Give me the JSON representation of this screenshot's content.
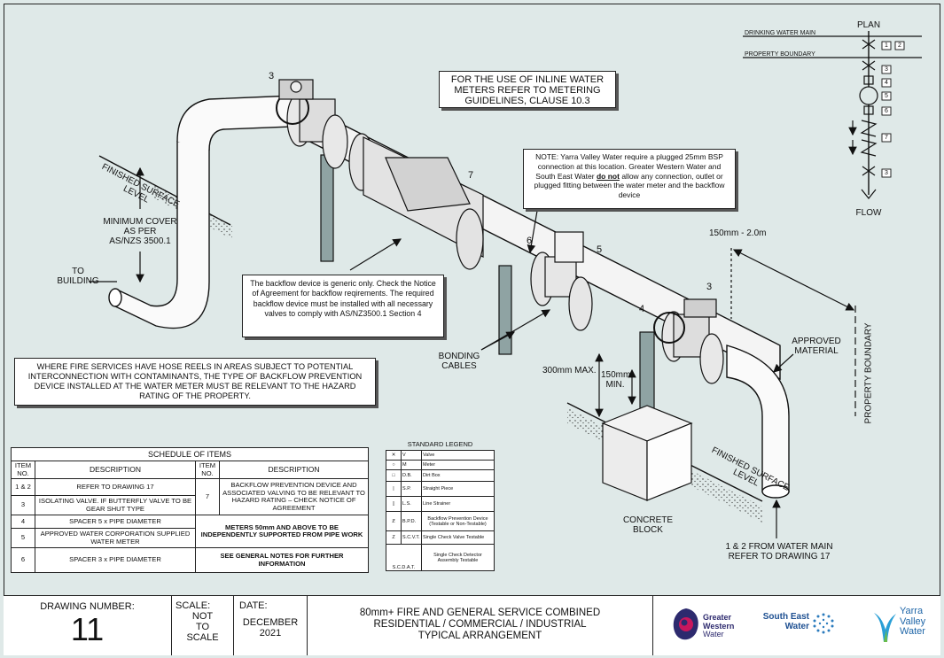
{
  "notes": {
    "meters": "FOR THE USE OF INLINE WATER METERS REFER TO METERING GUIDELINES, CLAUSE 10.3",
    "yarra_note_1": "NOTE: Yarra Valley Water require a plugged 25mm BSP connection at this location. Greater Western Water and South East Water",
    "yarra_note_emph": "do not",
    "yarra_note_2": "allow any connection, outlet or plugged fitting between the water meter and the backflow device",
    "backflow": "The backflow device is generic only. Check the Notice of Agreement for backflow reqirements. The required backflow device must be installed with all necessary valves to comply with AS/NZ3500.1 Section 4",
    "fire": "WHERE FIRE SERVICES HAVE HOSE REELS IN AREAS SUBJECT TO POTENTIAL INTERCONNECTION WITH CONTAMINANTS, THE TYPE OF BACKFLOW PREVENTION DEVICE INSTALLED AT THE WATER METER MUST BE RELEVANT TO THE HAZARD RATING OF THE PROPERTY."
  },
  "labels": {
    "finished_surface_left": "FINISHED SURFACE LEVEL",
    "finished_surface_right": "FINISHED SURFACE LEVEL",
    "min_cover_1": "MINIMUM COVER",
    "min_cover_2": "AS PER",
    "min_cover_3": "AS/NZS 3500.1",
    "to_building_1": "TO",
    "to_building_2": "BUILDING",
    "bonding_1": "BONDING",
    "bonding_2": "CABLES",
    "max300": "300mm MAX.",
    "min150_1": "150mm",
    "min150_2": "MIN.",
    "range": "150mm - 2.0m",
    "approved_1": "APPROVED",
    "approved_2": "MATERIAL",
    "property_boundary": "PROPERTY BOUNDARY",
    "concrete_1": "CONCRETE",
    "concrete_2": "BLOCK",
    "water_main_1": "1 & 2 FROM WATER MAIN",
    "water_main_2": "REFER TO DRAWING 17",
    "n3a": "3",
    "n3b": "3",
    "n4": "4",
    "n5": "5",
    "n6": "6",
    "n7": "7"
  },
  "plan": {
    "title": "PLAN",
    "drinking_main": "DRINKING WATER MAIN",
    "property_boundary": "PROPERTY BOUNDARY",
    "flow": "FLOW",
    "tags": [
      "1",
      "2",
      "3",
      "4",
      "5",
      "6",
      "7",
      "3"
    ]
  },
  "schedule": {
    "title": "SCHEDULE OF ITEMS",
    "col_item": "ITEM NO.",
    "col_desc": "DESCRIPTION",
    "rows_left": [
      {
        "item": "1 & 2",
        "desc": "REFER TO DRAWING 17"
      },
      {
        "item": "3",
        "desc": "ISOLATING VALVE.  IF BUTTERFLY VALVE TO BE GEAR SHUT TYPE"
      },
      {
        "item": "4",
        "desc": "SPACER 5 x PIPE DIAMETER"
      },
      {
        "item": "5",
        "desc": "APPROVED WATER CORPORATION SUPPLIED WATER METER"
      },
      {
        "item": "6",
        "desc": "SPACER 3 x PIPE DIAMETER"
      }
    ],
    "right_item": "7",
    "right_desc": "BACKFLOW PREVENTION DEVICE AND ASSOCIATED VALVING TO BE RELEVANT TO HAZARD RATING – CHECK NOTICE OF AGREEMENT",
    "right_note_1": "METERS 50mm AND ABOVE TO BE INDEPENDENTLY SUPPORTED FROM PIPE WORK",
    "right_note_2": "SEE GENERAL NOTES FOR FURTHER INFORMATION"
  },
  "legend": {
    "title": "STANDARD LEGEND",
    "rows": [
      {
        "abbr": "V",
        "desc": "Valve"
      },
      {
        "abbr": "M",
        "desc": "Meter"
      },
      {
        "abbr": "D.B.",
        "desc": "Dirt Box"
      },
      {
        "abbr": "S.P.",
        "desc": "Straight Piece"
      },
      {
        "abbr": "L.S.",
        "desc": "Line Strainer"
      },
      {
        "abbr": "B.P.D.",
        "desc": "Backflow Prevention Device (Testable or Non-Testable)"
      },
      {
        "abbr": "S.C.V.T.",
        "desc": "Single Check Valve Testable"
      },
      {
        "abbr": "S.C.D.A.T.",
        "desc": "Single Check Detector Assembly Testable"
      }
    ]
  },
  "titleblock": {
    "drawing_number_label": "DRAWING NUMBER:",
    "drawing_number": "11",
    "scale_label": "SCALE:",
    "scale_1": "NOT",
    "scale_2": "TO",
    "scale_3": "SCALE",
    "date_label": "DATE:",
    "date_1": "DECEMBER",
    "date_2": "2021",
    "title_1": "80mm+ FIRE AND GENERAL SERVICE COMBINED",
    "title_2": "RESIDENTIAL / COMMERCIAL / INDUSTRIAL",
    "title_3": "TYPICAL ARRANGEMENT",
    "logo_gww_1": "Greater",
    "logo_gww_2": "Western",
    "logo_gww_3": "Water",
    "logo_sew_1": "South East",
    "logo_sew_2": "Water",
    "logo_yvw_1": "Yarra",
    "logo_yvw_2": "Valley",
    "logo_yvw_3": "Water"
  }
}
